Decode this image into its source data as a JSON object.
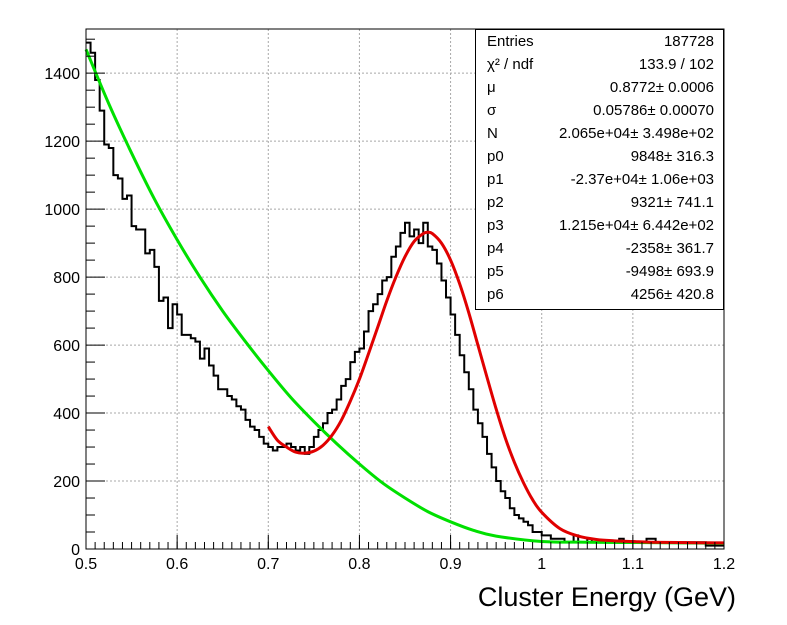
{
  "chart_data": {
    "type": "histogram",
    "xlabel": "Cluster Energy  (GeV)",
    "ylabel": "",
    "xlim": [
      0.5,
      1.2
    ],
    "ylim": [
      0,
      1530
    ],
    "grid": true,
    "x_ticks": [
      "0.5",
      "0.6",
      "0.7",
      "0.8",
      "0.9",
      "1",
      "1.1",
      "1.2"
    ],
    "y_ticks": [
      "0",
      "200",
      "400",
      "600",
      "800",
      "1000",
      "1200",
      "1400"
    ],
    "bin_width": 0.005,
    "bin_start": 0.5,
    "histogram_counts": [
      1490,
      1460,
      1380,
      1290,
      1190,
      1180,
      1100,
      1090,
      1030,
      1040,
      950,
      940,
      940,
      870,
      880,
      830,
      730,
      740,
      650,
      720,
      690,
      630,
      630,
      620,
      610,
      560,
      590,
      540,
      510,
      470,
      470,
      450,
      440,
      420,
      410,
      380,
      360,
      350,
      330,
      310,
      300,
      290,
      300,
      300,
      310,
      300,
      290,
      300,
      280,
      300,
      330,
      350,
      370,
      400,
      410,
      440,
      480,
      500,
      550,
      580,
      590,
      640,
      700,
      720,
      750,
      790,
      800,
      860,
      890,
      930,
      960,
      920,
      940,
      900,
      960,
      890,
      880,
      840,
      790,
      740,
      690,
      630,
      570,
      520,
      470,
      410,
      370,
      330,
      280,
      240,
      200,
      170,
      150,
      120,
      100,
      90,
      80,
      70,
      50,
      50,
      40,
      40,
      30,
      30,
      30,
      20,
      20,
      40,
      20,
      20,
      30,
      20,
      20,
      20,
      20,
      20,
      20,
      30,
      20,
      20,
      20,
      20,
      20,
      30,
      30,
      20,
      20,
      20,
      20,
      20,
      20,
      20,
      20,
      20,
      20,
      20,
      10,
      10,
      10,
      10
    ],
    "fit_total": {
      "x_range": [
        0.7,
        1.2
      ],
      "color": "#e00000",
      "x": [
        0.7,
        0.71,
        0.72,
        0.73,
        0.74,
        0.75,
        0.76,
        0.77,
        0.78,
        0.79,
        0.8,
        0.81,
        0.82,
        0.83,
        0.84,
        0.85,
        0.86,
        0.87,
        0.875,
        0.88,
        0.89,
        0.9,
        0.91,
        0.92,
        0.93,
        0.94,
        0.95,
        0.96,
        0.97,
        0.98,
        0.99,
        1.0,
        1.02,
        1.04,
        1.06,
        1.08,
        1.1,
        1.12,
        1.15,
        1.2
      ],
      "y": [
        360,
        320,
        300,
        285,
        282,
        288,
        305,
        335,
        378,
        435,
        500,
        575,
        652,
        730,
        800,
        860,
        905,
        928,
        932,
        928,
        900,
        850,
        780,
        695,
        600,
        505,
        412,
        327,
        255,
        195,
        145,
        108,
        60,
        38,
        28,
        24,
        22,
        20,
        19,
        18
      ]
    },
    "fit_background": {
      "x_range": [
        0.5,
        1.2
      ],
      "color": "#00e000",
      "x": [
        0.5,
        0.525,
        0.55,
        0.575,
        0.6,
        0.625,
        0.65,
        0.675,
        0.7,
        0.725,
        0.75,
        0.775,
        0.8,
        0.825,
        0.85,
        0.875,
        0.9,
        0.925,
        0.95,
        1.0,
        1.05,
        1.1,
        1.15,
        1.2
      ],
      "y": [
        1470,
        1310,
        1165,
        1030,
        910,
        800,
        700,
        610,
        525,
        445,
        375,
        310,
        250,
        195,
        150,
        110,
        80,
        55,
        38,
        22,
        20,
        19,
        18,
        17
      ]
    },
    "hist_color": "#000000"
  },
  "stats_box": [
    {
      "name": "Entries",
      "value": "187728"
    },
    {
      "name": "χ² / ndf",
      "value": "133.9 / 102"
    },
    {
      "name": "μ",
      "value": "0.8772± 0.0006"
    },
    {
      "name": "σ",
      "value": "0.05786± 0.00070"
    },
    {
      "name": "N",
      "value": "2.065e+04± 3.498e+02"
    },
    {
      "name": "p0",
      "value": "9848± 316.3"
    },
    {
      "name": "p1",
      "value": "-2.37e+04± 1.06e+03"
    },
    {
      "name": "p2",
      "value": "9321± 741.1"
    },
    {
      "name": "p3",
      "value": "1.215e+04± 6.442e+02"
    },
    {
      "name": "p4",
      "value": "-2358± 361.7"
    },
    {
      "name": "p5",
      "value": "-9498± 693.9"
    },
    {
      "name": "p6",
      "value": "4256± 420.8"
    }
  ]
}
